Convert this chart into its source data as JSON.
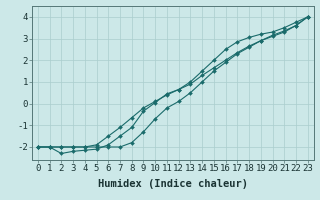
{
  "x": [
    0,
    1,
    2,
    3,
    4,
    5,
    6,
    7,
    8,
    9,
    10,
    11,
    12,
    13,
    14,
    15,
    16,
    17,
    18,
    19,
    20,
    21,
    22,
    23
  ],
  "y_line1": [
    -2.0,
    -2.0,
    -2.0,
    -2.0,
    -2.0,
    -2.0,
    -2.0,
    -2.0,
    -1.8,
    -1.3,
    -0.7,
    -0.2,
    0.1,
    0.5,
    1.0,
    1.5,
    1.9,
    2.3,
    2.6,
    2.9,
    3.1,
    3.3,
    3.6,
    4.0
  ],
  "y_line2": [
    -2.0,
    -2.0,
    -2.0,
    -2.0,
    -2.0,
    -1.9,
    -1.5,
    -1.1,
    -0.65,
    -0.2,
    0.1,
    0.4,
    0.65,
    0.9,
    1.3,
    1.65,
    2.0,
    2.35,
    2.65,
    2.9,
    3.15,
    3.35,
    3.6,
    4.0
  ],
  "y_line3": [
    -2.0,
    -2.0,
    -2.3,
    -2.2,
    -2.15,
    -2.1,
    -1.9,
    -1.5,
    -1.1,
    -0.35,
    0.05,
    0.45,
    0.65,
    1.0,
    1.5,
    2.0,
    2.5,
    2.85,
    3.05,
    3.2,
    3.3,
    3.5,
    3.75,
    4.0
  ],
  "bg_color": "#cce8e8",
  "line_color": "#1a6b6b",
  "grid_color": "#aacece",
  "xlabel": "Humidex (Indice chaleur)",
  "ylim": [
    -2.6,
    4.5
  ],
  "xlim": [
    -0.5,
    23.5
  ],
  "yticks": [
    -2,
    -1,
    0,
    1,
    2,
    3,
    4
  ],
  "xticks": [
    0,
    1,
    2,
    3,
    4,
    5,
    6,
    7,
    8,
    9,
    10,
    11,
    12,
    13,
    14,
    15,
    16,
    17,
    18,
    19,
    20,
    21,
    22,
    23
  ],
  "xlabel_fontsize": 7.5,
  "tick_fontsize": 6.5,
  "marker": "D",
  "marker_size": 2.0,
  "line_width": 0.8
}
